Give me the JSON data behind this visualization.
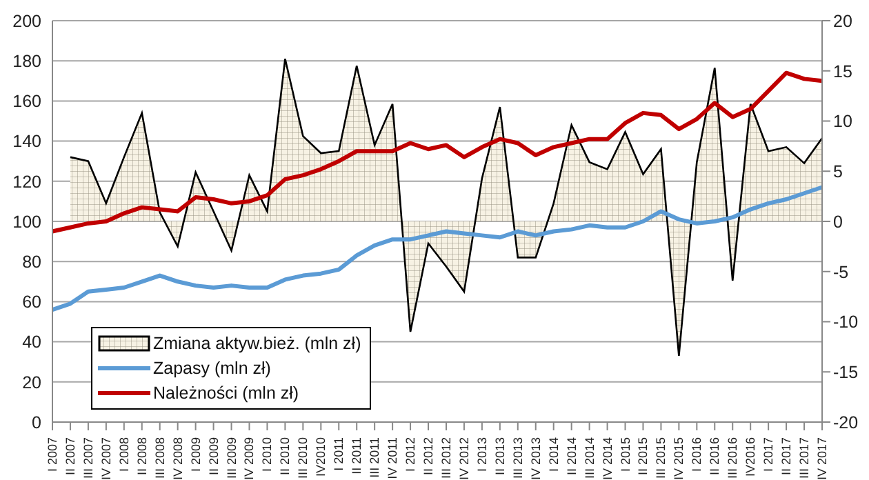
{
  "chart_data": {
    "type": "line",
    "categories": [
      "I 2007",
      "II 2007",
      "III 2007",
      "IV 2007",
      "I 2008",
      "II 2008",
      "III 2008",
      "IV 2008",
      "I 2009",
      "II 2009",
      "III 2009",
      "IV 2009",
      "I 2010",
      "II 2010",
      "III 2010",
      "IV2010",
      "I 2011",
      "II 2011",
      "III 2011",
      "IV 2011",
      "I 2012",
      "II 2012",
      "III 2012",
      "IV 2012",
      "I 2013",
      "II 2013",
      "III 2013",
      "IV 2013",
      "I 2014",
      "II 2014",
      "III 2014",
      "IV 2014",
      "I 2015",
      "II 2015",
      "III 2015",
      "IV 2015",
      "I 2016",
      "II 2016",
      "III 2016",
      "IV2016",
      "I 2017",
      "II 2017",
      "III 2017",
      "IV 2017"
    ],
    "series": [
      {
        "name": "Zmiana aktyw.bież. (mln zł)",
        "type": "area",
        "axis": "y2",
        "color": "#000000",
        "values": [
          null,
          6.4,
          6.0,
          1.8,
          6.4,
          10.8,
          0.9,
          -2.5,
          4.9,
          1.0,
          -2.9,
          4.6,
          1.0,
          16.2,
          8.5,
          6.8,
          7.0,
          15.5,
          7.6,
          11.7,
          -11.0,
          -2.2,
          -4.5,
          -7.0,
          4.3,
          11.4,
          -3.6,
          -3.6,
          1.8,
          9.6,
          5.9,
          5.2,
          8.9,
          4.7,
          7.2,
          -13.4,
          5.9,
          15.3,
          -5.9,
          11.7,
          7.0,
          7.4,
          5.8,
          8.3
        ]
      },
      {
        "name": "Zapasy (mln zł)",
        "color": "#5b9bd5",
        "values": [
          56,
          59,
          65,
          66,
          67,
          70,
          73,
          70,
          68,
          67,
          68,
          67,
          67,
          71,
          73,
          74,
          76,
          83,
          88,
          91,
          91,
          93,
          95,
          94,
          93,
          92,
          95,
          93,
          95,
          96,
          98,
          97,
          97,
          100,
          105,
          101,
          99,
          100,
          102,
          106,
          109,
          111,
          114,
          117
        ]
      },
      {
        "name": "Należności (mln zł)",
        "color": "#c00000",
        "values": [
          95,
          97,
          99,
          100,
          104,
          107,
          106,
          105,
          112,
          111,
          109,
          110,
          113,
          121,
          123,
          126,
          130,
          135,
          135,
          135,
          139,
          136,
          138,
          132,
          137,
          141,
          139,
          133,
          137,
          139,
          141,
          141,
          149,
          154,
          153,
          146,
          151,
          159,
          152,
          156,
          165,
          174,
          171,
          170
        ]
      }
    ],
    "ylim": [
      0,
      200
    ],
    "yticks": [
      0,
      20,
      40,
      60,
      80,
      100,
      120,
      140,
      160,
      180,
      200
    ],
    "y2lim": [
      -20,
      20
    ],
    "y2ticks": [
      -20,
      -15,
      -10,
      -5,
      0,
      5,
      10,
      15,
      20
    ],
    "grid": "y",
    "legend": "bottom left",
    "marker": "none"
  }
}
